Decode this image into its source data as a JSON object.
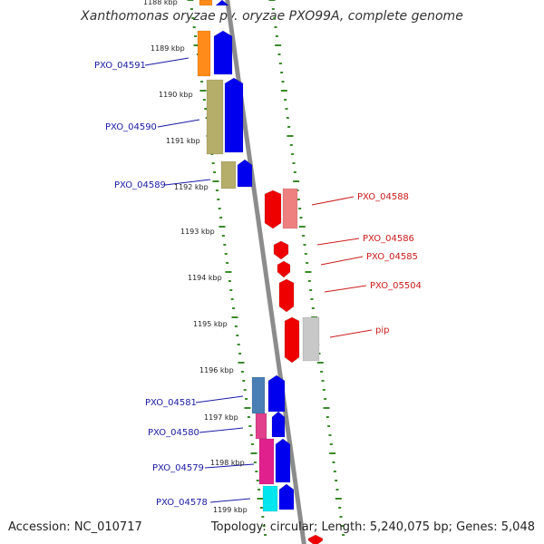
{
  "title": "Xanthomonas oryzae pv. oryzae PXO99A, complete genome",
  "accession": "Accession: NC_010717",
  "topology": "Topology: circular; Length: 5,240,075 bp; Genes: 5,048",
  "colors": {
    "ruler_dots": "#3a8a2a",
    "backbone": "#8c8c8c",
    "forward_strand": "#0000ee",
    "reverse_strand": "#ee0000",
    "left_label": "#1a1aa6",
    "right_label": "#cc1a1a"
  },
  "kbp_ticks": [
    "1188 kbp",
    "1189 kbp",
    "1190 kbp",
    "1191 kbp",
    "1192 kbp",
    "1193 kbp",
    "1194 kbp",
    "1195 kbp",
    "1196 kbp",
    "1197 kbp",
    "1198 kbp",
    "1199 kbp"
  ],
  "left_genes": [
    "PXO_04591",
    "PXO_04590",
    "PXO_04589",
    "PXO_04581",
    "PXO_04580",
    "PXO_04579",
    "PXO_04578"
  ],
  "right_genes": [
    "PXO_04588",
    "PXO_04586",
    "PXO_04585",
    "PXO_05504",
    "pip"
  ]
}
